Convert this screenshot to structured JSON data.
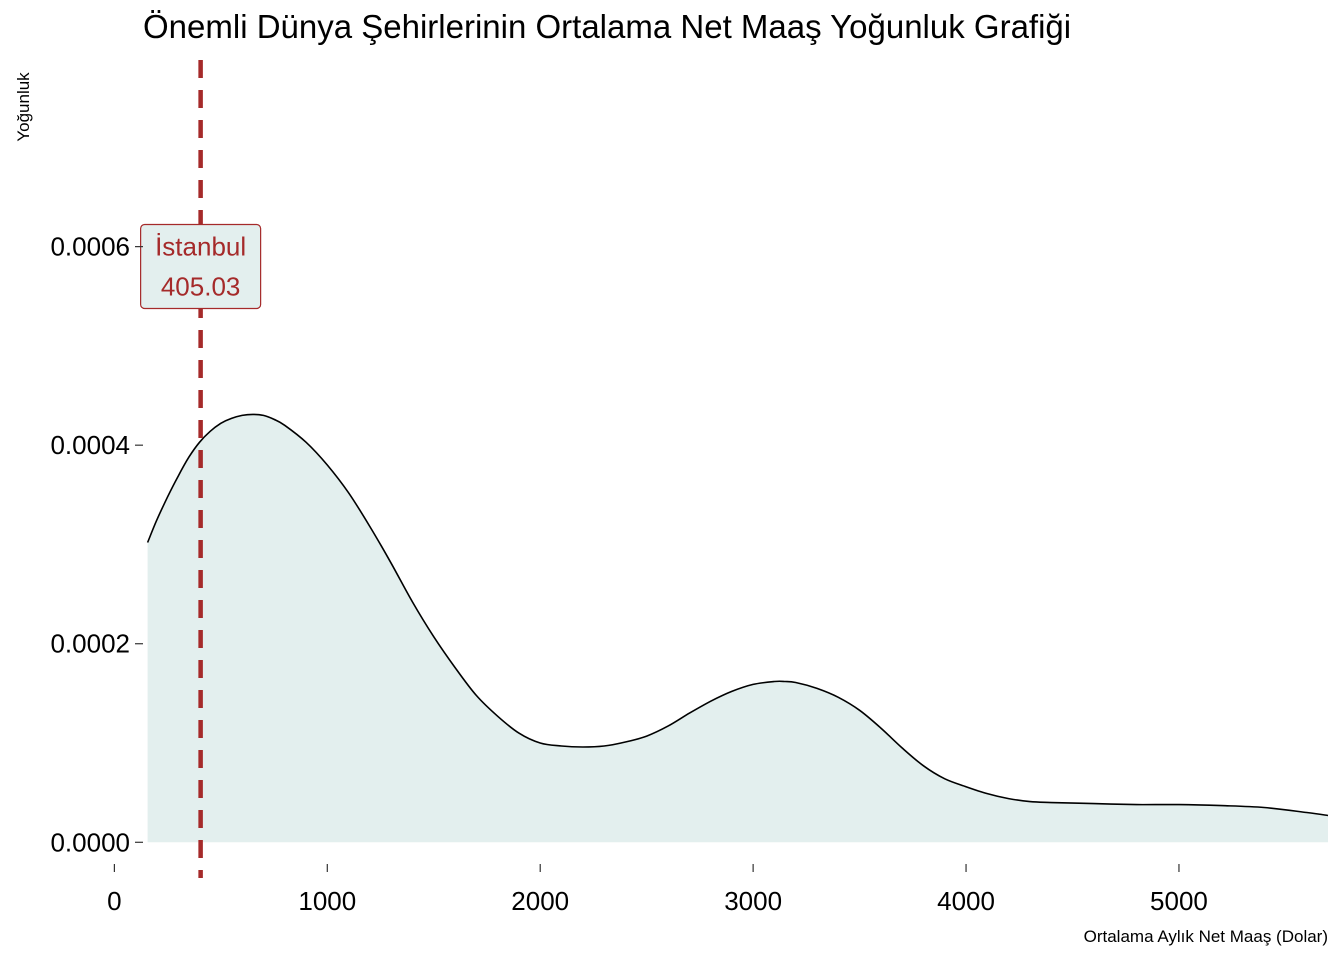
{
  "chart_data": {
    "type": "area",
    "title": "Önemli Dünya Şehirlerinin Ortalama Net Maaş Yoğunluk Grafiği",
    "xlabel": "Ortalama Aylık Net Maaş (Dolar)",
    "ylabel": "Yoğunluk",
    "xlim": [
      -30,
      5700
    ],
    "ylim": [
      -4e-05,
      0.00079
    ],
    "x_ticks": [
      0,
      1000,
      2000,
      3000,
      4000,
      5000
    ],
    "x_tick_labels": [
      "0",
      "1000",
      "2000",
      "3000",
      "4000",
      "5000"
    ],
    "y_ticks": [
      0,
      0.0002,
      0.0004,
      0.0006
    ],
    "y_tick_labels": [
      "0.0000",
      "0.0002",
      "0.0004",
      "0.0006"
    ],
    "grid": false,
    "legend": "none",
    "fill_color": "#e3efee",
    "line_color": "#000000",
    "series": [
      {
        "x": [
          156,
          200,
          250,
          300,
          350,
          400,
          450,
          500,
          550,
          600,
          650,
          700,
          750,
          800,
          900,
          1000,
          1100,
          1200,
          1300,
          1400,
          1500,
          1600,
          1700,
          1800,
          1900,
          2000,
          2100,
          2200,
          2300,
          2400,
          2500,
          2600,
          2700,
          2800,
          2900,
          3000,
          3100,
          3150,
          3200,
          3300,
          3400,
          3500,
          3600,
          3700,
          3800,
          3900,
          4000,
          4100,
          4200,
          4300,
          4400,
          4600,
          4800,
          5000,
          5200,
          5400,
          5600,
          5700
        ],
        "y": [
          0.000302,
          0.000325,
          0.000348,
          0.000369,
          0.000388,
          0.000403,
          0.000414,
          0.000422,
          0.000427,
          0.00043,
          0.000431,
          0.00043,
          0.000426,
          0.00042,
          0.000403,
          0.00038,
          0.000352,
          0.000318,
          0.000281,
          0.000242,
          0.000207,
          0.000176,
          0.000148,
          0.000127,
          0.00011,
          0.0001,
          9.7e-05,
          9.6e-05,
          9.7e-05,
          0.000101,
          0.000107,
          0.000117,
          0.00013,
          0.000142,
          0.000152,
          0.000159,
          0.000162,
          0.000162,
          0.000161,
          0.000155,
          0.000146,
          0.000133,
          0.000115,
          9.5e-05,
          7.7e-05,
          6.4e-05,
          5.6e-05,
          4.9e-05,
          4.4e-05,
          4.1e-05,
          4e-05,
          3.9e-05,
          3.8e-05,
          3.8e-05,
          3.7e-05,
          3.5e-05,
          3e-05,
          2.7e-05
        ]
      }
    ],
    "annotation": {
      "x": 405.03,
      "label_city": "İstanbul",
      "label_value": "405.03",
      "label_y": 0.00058,
      "color": "#a52a2a",
      "box_fill": "#e3efee",
      "line_style": "dashed"
    }
  }
}
